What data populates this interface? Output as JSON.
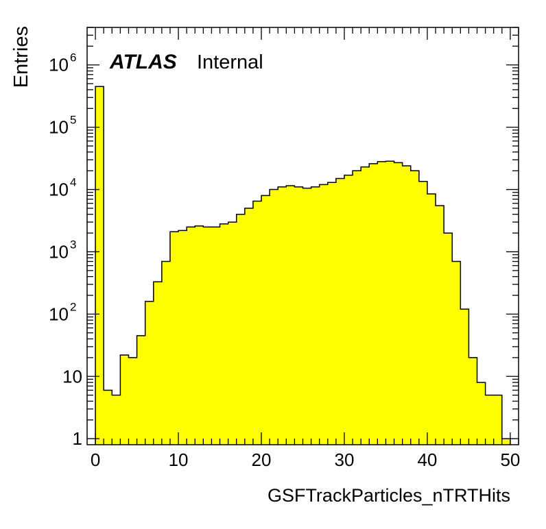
{
  "chart_data": {
    "type": "bar",
    "title": "",
    "xlabel": "GSFTrackParticles_nTRTHits",
    "ylabel": "Entries",
    "annotation": {
      "experiment": "ATLAS",
      "status": "Internal"
    },
    "x_scale": "linear",
    "y_scale": "log",
    "xlim": [
      -1,
      51
    ],
    "ylim": [
      0.8,
      4000000
    ],
    "grid": false,
    "legend": "none",
    "fill_color": "#ffff00",
    "line_color": "#000000",
    "x_ticks": [
      "0",
      "10",
      "20",
      "30",
      "40",
      "50"
    ],
    "y_ticks": [
      {
        "value": 1,
        "base": "1",
        "exp": ""
      },
      {
        "value": 10,
        "base": "10",
        "exp": ""
      },
      {
        "value": 100,
        "base": "10",
        "exp": "2"
      },
      {
        "value": 1000,
        "base": "10",
        "exp": "3"
      },
      {
        "value": 10000,
        "base": "10",
        "exp": "4"
      },
      {
        "value": 100000,
        "base": "10",
        "exp": "5"
      },
      {
        "value": 1000000,
        "base": "10",
        "exp": "6"
      }
    ],
    "bin_edges": [
      0,
      1,
      2,
      3,
      4,
      5,
      6,
      7,
      8,
      9,
      10,
      11,
      12,
      13,
      14,
      15,
      16,
      17,
      18,
      19,
      20,
      21,
      22,
      23,
      24,
      25,
      26,
      27,
      28,
      29,
      30,
      31,
      32,
      33,
      34,
      35,
      36,
      37,
      38,
      39,
      40,
      41,
      42,
      43,
      44,
      45,
      46,
      47,
      48,
      49,
      50
    ],
    "values": [
      450000,
      6,
      5,
      22,
      20,
      45,
      160,
      330,
      700,
      2100,
      2200,
      2500,
      2600,
      2500,
      2500,
      2800,
      3000,
      4000,
      5000,
      6500,
      8000,
      10000,
      11000,
      11500,
      11000,
      10500,
      11000,
      12000,
      13000,
      15000,
      17000,
      20000,
      23000,
      26000,
      28000,
      28500,
      27000,
      24000,
      20000,
      13500,
      8500,
      5500,
      2000,
      700,
      120,
      20,
      8,
      5,
      5,
      1
    ]
  }
}
